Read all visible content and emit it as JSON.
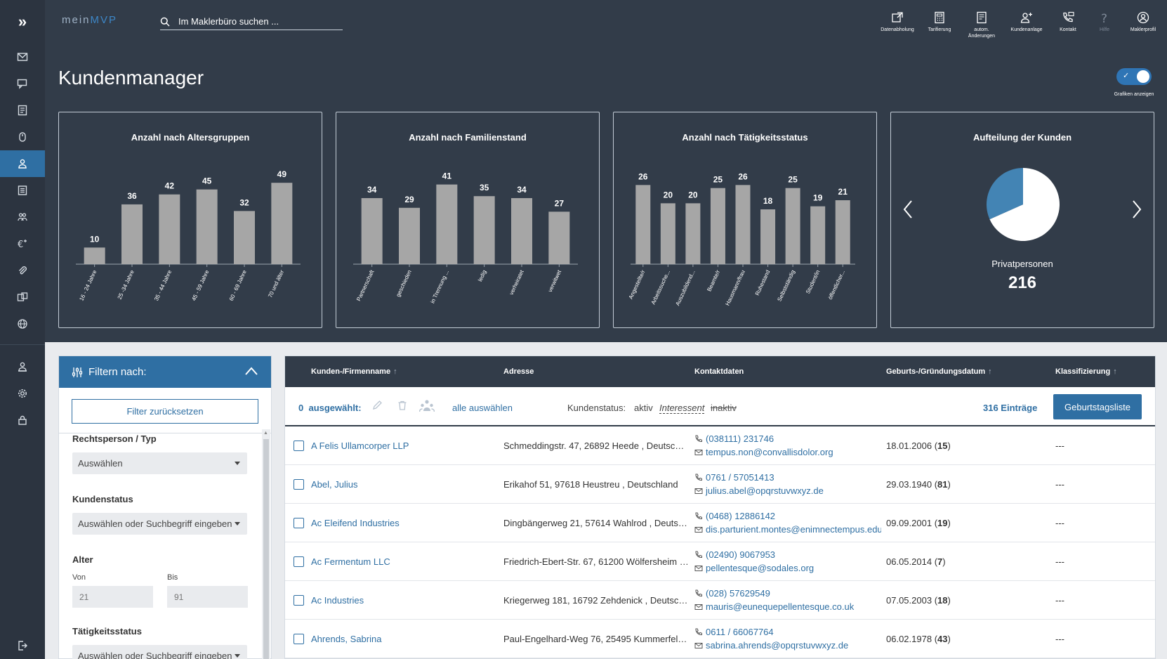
{
  "brand": {
    "part1": "mein",
    "part2": "MVP"
  },
  "search": {
    "placeholder": "Im Maklerbüro suchen ..."
  },
  "toolbar": [
    {
      "icon": "data-fetch-icon",
      "label": "Datenabholung"
    },
    {
      "icon": "calculator-icon",
      "label": "Tarifierung"
    },
    {
      "icon": "auto-changes-icon",
      "label": "autom. Änderungen"
    },
    {
      "icon": "add-customer-icon",
      "label": "Kundenanlage"
    },
    {
      "icon": "contact-icon",
      "label": "Kontakt"
    },
    {
      "icon": "help-icon",
      "label": "Hilfe"
    },
    {
      "icon": "profile-icon",
      "label": "Maklerprofil"
    }
  ],
  "sidebar": [
    "mail-icon",
    "chat-icon",
    "contract-icon",
    "mouse-icon",
    "customer-icon",
    "document-icon",
    "people-icon",
    "euro-plus-icon",
    "attachment-icon",
    "transfer-icon",
    "globe-icon",
    "user-settings-icon",
    "gear-icon",
    "lock-icon",
    "logout-icon"
  ],
  "page": {
    "title": "Kundenmanager",
    "toggle_label": "Grafiken anzeigen"
  },
  "colors": {
    "bar": "#a6a6a6",
    "pie_primary": "#ffffff",
    "pie_secondary": "#4384b4",
    "accent": "#2f6fa3"
  },
  "chart_data": [
    {
      "type": "bar",
      "title": "Anzahl nach Altersgruppen",
      "categories": [
        "16 - 24 Jahre",
        "25 -34 Jahre",
        "35 - 44 Jahre",
        "45 - 59 Jahre",
        "60 - 69 Jahre",
        "70 und älter"
      ],
      "values": [
        10,
        36,
        42,
        45,
        32,
        49
      ],
      "ylim": [
        0,
        55
      ]
    },
    {
      "type": "bar",
      "title": "Anzahl nach Familienstand",
      "categories": [
        "Partnerschaft",
        "geschieden",
        "in Trennung ...",
        "ledig",
        "verheiratet",
        "verwitwet"
      ],
      "values": [
        34,
        29,
        41,
        35,
        34,
        27
      ],
      "ylim": [
        0,
        47
      ]
    },
    {
      "type": "bar",
      "title": "Anzahl nach Tätigkeitsstatus",
      "categories": [
        "Angestellte/r",
        "Arbeitssuche...",
        "Auszubildend...",
        "Beamte/r",
        "Hausmann/frau",
        "Ruhestand",
        "Selbstständig",
        "Student/in",
        "öffentlicher..."
      ],
      "values": [
        26,
        20,
        20,
        25,
        26,
        18,
        25,
        19,
        21
      ],
      "ylim": [
        0,
        30
      ]
    },
    {
      "type": "pie",
      "title": "Aufteilung der Kunden",
      "slices": [
        {
          "label": "Privatpersonen",
          "value": 216
        },
        {
          "label": "",
          "value": 100
        }
      ]
    }
  ],
  "filter": {
    "title": "Filtern nach:",
    "reset": "Filter zurücksetzen",
    "rechtsperson_label": "Rechtsperson / Typ",
    "rechtsperson_value": "Auswählen",
    "kundenstatus_label": "Kundenstatus",
    "kundenstatus_value": "Auswählen oder Suchbegriff eingeben",
    "alter_label": "Alter",
    "von_label": "Von",
    "von_placeholder": "21",
    "bis_label": "Bis",
    "bis_placeholder": "91",
    "taetigkeit_label": "Tätigkeitsstatus",
    "taetigkeit_value": "Auswählen oder Suchbegriff eingeben"
  },
  "table": {
    "headers": [
      "Kunden-/Firmenname",
      "Adresse",
      "Kontaktdaten",
      "Geburts-/Gründungsdatum",
      "Klassifizierung"
    ],
    "sort_arrow": "↑",
    "selected_count": "0",
    "selected_label": "ausgewählt:",
    "select_all": "alle auswählen",
    "status_label": "Kundenstatus:",
    "status_aktiv": "aktiv",
    "status_interessent": "Interessent",
    "status_inaktiv": "inaktiv",
    "entries": "316 Einträge",
    "birthday_button": "Geburtstagsliste",
    "rows": [
      {
        "name": "A Felis Ullamcorper LLP",
        "address": "Schmeddingstr. 47, 26892 Heede , Deutschland",
        "phone": "(038111) 231746",
        "email": "tempus.non@convallisdolor.org",
        "date": "18.01.2006",
        "age": "15",
        "class": "---"
      },
      {
        "name": "Abel, Julius",
        "address": "Erikahof 51, 97618 Heustreu , Deutschland",
        "phone": "0761 / 57051413",
        "email": "julius.abel@opqrstuvwxyz.de",
        "date": "29.03.1940",
        "age": "81",
        "class": "---"
      },
      {
        "name": "Ac Eleifend Industries",
        "address": "Dingbängerweg 21, 57614 Wahlrod , Deutschland",
        "phone": "(0468) 12886142",
        "email": "dis.parturient.montes@enimnectempus.edu",
        "date": "09.09.2001",
        "age": "19",
        "class": "---"
      },
      {
        "name": "Ac Fermentum LLC",
        "address": "Friedrich-Ebert-Str. 67, 61200 Wölfersheim , Deutschland",
        "phone": "(02490) 9067953",
        "email": "pellentesque@sodales.org",
        "date": "06.05.2014",
        "age": "7",
        "class": "---"
      },
      {
        "name": "Ac Industries",
        "address": "Kriegerweg 181, 16792 Zehdenick , Deutschland",
        "phone": "(028) 57629549",
        "email": "mauris@eunequepellentesque.co.uk",
        "date": "07.05.2003",
        "age": "18",
        "class": "---"
      },
      {
        "name": "Ahrends, Sabrina",
        "address": "Paul-Engelhard-Weg 76, 25495 Kummerfeld , Deutschland",
        "phone": "0611 / 66067764",
        "email": "sabrina.ahrends@opqrstuvwxyz.de",
        "date": "06.02.1978",
        "age": "43",
        "class": "---"
      }
    ]
  }
}
